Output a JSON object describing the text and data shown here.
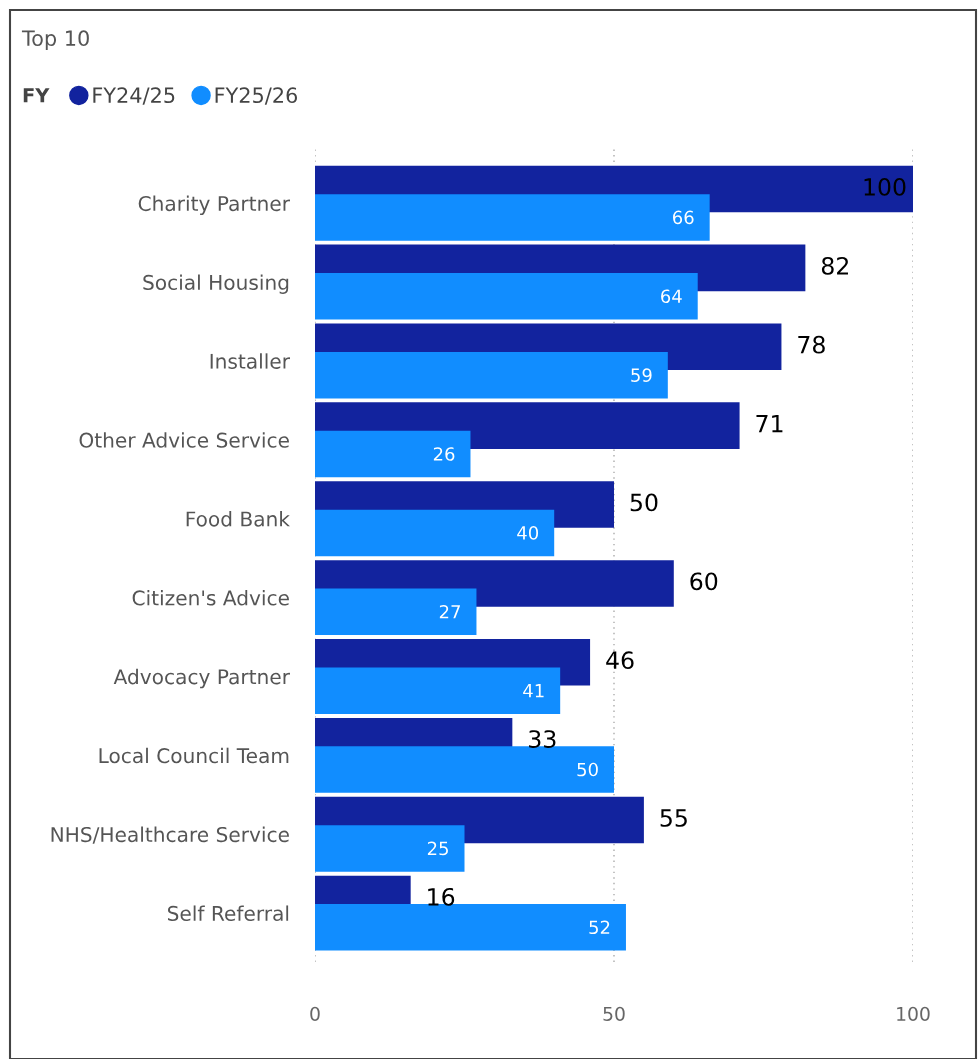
{
  "chart_data": {
    "type": "bar",
    "orientation": "horizontal",
    "title": "Top 10",
    "legend_title": "FY",
    "legend": "top left",
    "categories": [
      "Charity Partner",
      "Social Housing",
      "Installer",
      "Other Advice Service",
      "Food Bank",
      "Citizen's Advice",
      "Advocacy Partner",
      "Local Council Team",
      "NHS/Healthcare Service",
      "Self Referral"
    ],
    "series": [
      {
        "name": "FY24/25",
        "color": "#12239e",
        "values": [
          100,
          82,
          78,
          71,
          50,
          60,
          46,
          33,
          55,
          16
        ]
      },
      {
        "name": "FY25/26",
        "color": "#118dff",
        "values": [
          66,
          64,
          59,
          26,
          40,
          27,
          41,
          50,
          25,
          52
        ]
      }
    ],
    "xlim": [
      0,
      100
    ],
    "xticks": [
      0,
      50,
      100
    ],
    "grid": "x",
    "data_labels": true
  }
}
